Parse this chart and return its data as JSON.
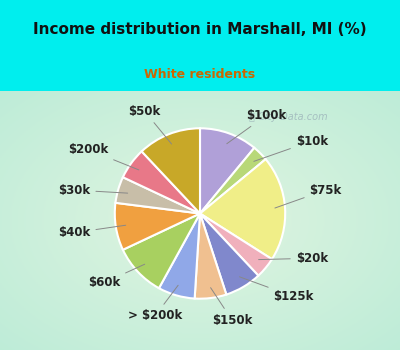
{
  "title": "Income distribution in Marshall, MI (%)",
  "subtitle": "White residents",
  "title_color": "#111111",
  "subtitle_color": "#cc6600",
  "bg_cyan": "#00eeee",
  "labels": [
    "$100k",
    "$10k",
    "$75k",
    "$20k",
    "$125k",
    "$150k",
    "> $200k",
    "$60k",
    "$40k",
    "$30k",
    "$200k",
    "$50k"
  ],
  "sizes": [
    11,
    3,
    20,
    4,
    7,
    6,
    7,
    10,
    9,
    5,
    6,
    12
  ],
  "colors": [
    "#b0a0d8",
    "#b8d878",
    "#f0ee88",
    "#f0b0bc",
    "#8088cc",
    "#f0c090",
    "#90a8e8",
    "#a8d060",
    "#f0a040",
    "#c8bea8",
    "#e87888",
    "#c8a828"
  ],
  "label_fontsize": 8.5,
  "watermark": "City-Data.com"
}
